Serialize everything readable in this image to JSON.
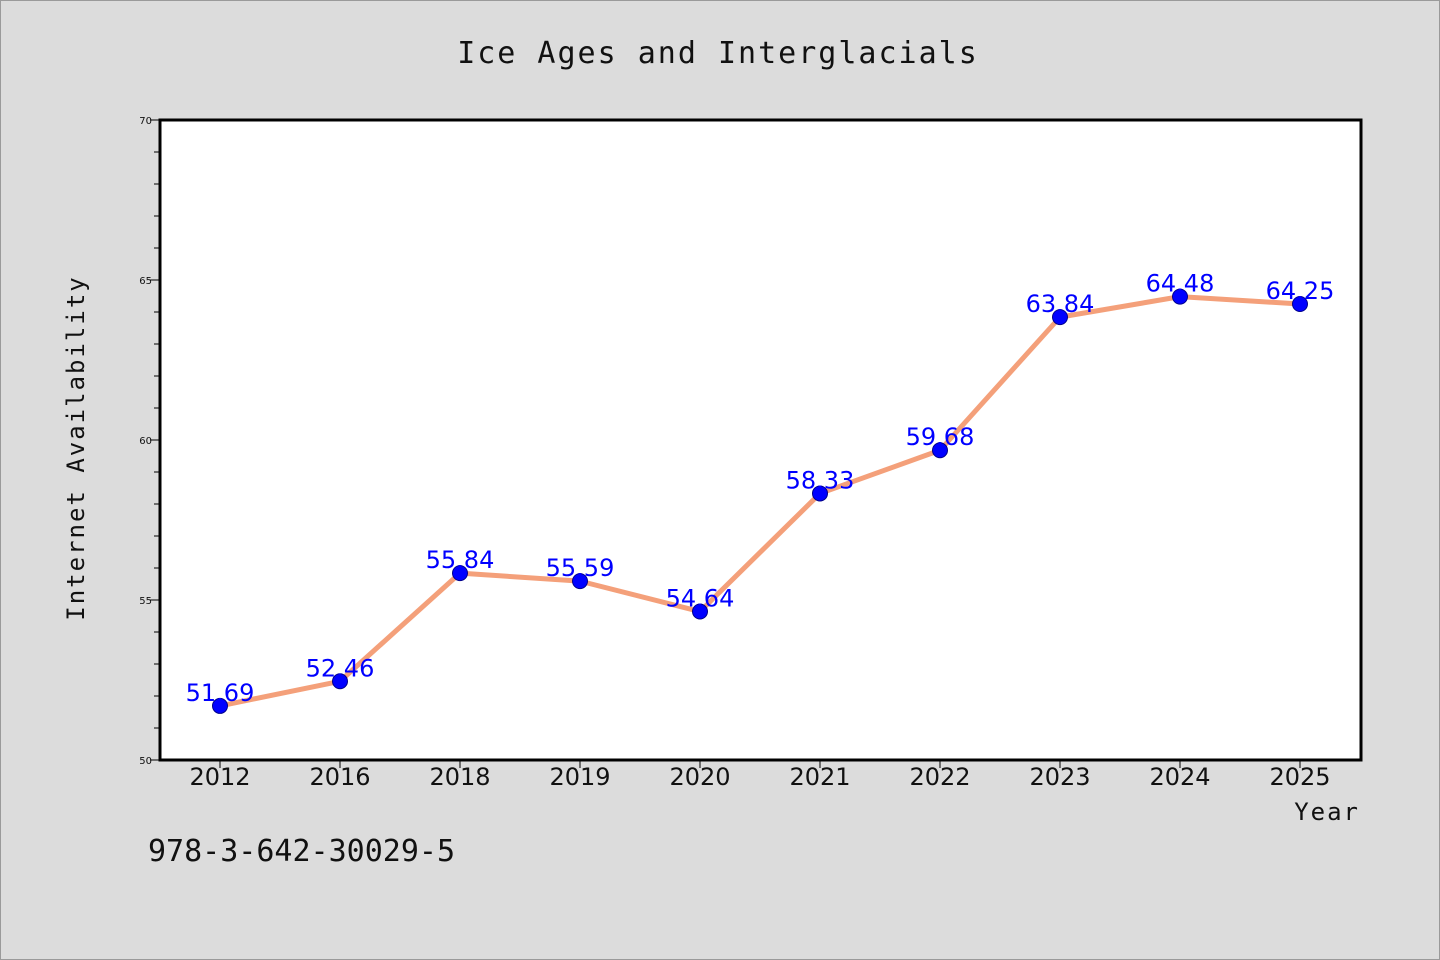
{
  "colors": {
    "background": "#dcdcdc",
    "plot_background": "#ffffff",
    "line": "#f4a07a",
    "marker": "#0000ff",
    "data_label": "#0000ff"
  },
  "footer": {
    "isbn": "978-3-642-30029-5"
  },
  "chart_data": {
    "type": "line",
    "title": "Ice Ages and Interglacials",
    "xlabel": "Year",
    "ylabel": "Internet Availability",
    "categories": [
      "2012",
      "2016",
      "2018",
      "2019",
      "2020",
      "2021",
      "2022",
      "2023",
      "2024",
      "2025"
    ],
    "series": [
      {
        "values": [
          51.69,
          52.46,
          55.84,
          55.59,
          54.64,
          58.33,
          59.68,
          63.84,
          64.48,
          64.25
        ],
        "data_labels": [
          "51.69",
          "52.46",
          "55.84",
          "55.59",
          "54.64",
          "58.33",
          "59.68",
          "63.84",
          "64.48",
          "64.25"
        ]
      }
    ],
    "ylim": [
      50,
      70
    ],
    "yticks": [
      50,
      55,
      60,
      65,
      70
    ],
    "ytick_labels": [
      "50",
      "55",
      "60",
      "65",
      "70"
    ],
    "y_minor_step": 1,
    "grid": false,
    "legend": "none"
  }
}
